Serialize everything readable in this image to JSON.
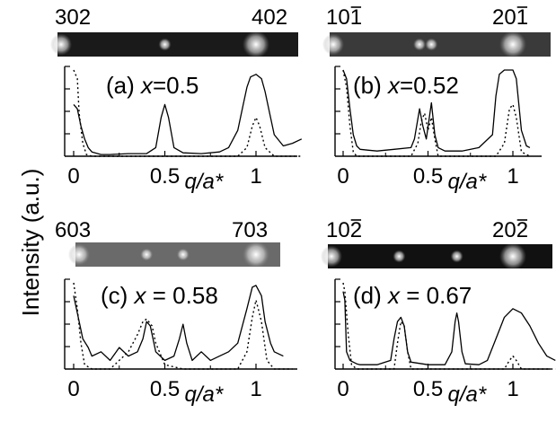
{
  "ylabel": "Intensity (a.u.)",
  "panels": [
    {
      "label": "(a) x=0.5",
      "tag": "(a) ",
      "var": "x",
      "eq": "=0.5",
      "strip_left": "302",
      "strip_right": "402",
      "xlabel": "q/a*",
      "xticks": [
        "0",
        "0.5",
        "1"
      ],
      "strip_spots": [
        0.5,
        1.0
      ],
      "strip_bg": "#1a1a1a"
    },
    {
      "label": "(b) x=0.52",
      "tag": "(b) ",
      "var": "x",
      "eq": "=0.52",
      "strip_left": "101",
      "strip_right": "201",
      "strip_left_overbar": "1",
      "strip_right_overbar": "1",
      "xlabel": "q/a*",
      "xticks": [
        "0",
        "0.5",
        "1"
      ],
      "strip_spots": [
        0.45,
        0.52,
        1.0
      ],
      "strip_bg": "#3a3a3a"
    },
    {
      "label": "(c) x = 0.58",
      "tag": "(c) ",
      "var": "x",
      "eq": " = 0.58",
      "strip_left": "603",
      "strip_right": "703",
      "xlabel": "q/a*",
      "xticks": [
        "0",
        "0.5",
        "1"
      ],
      "strip_spots": [
        0.4,
        0.6,
        1.0
      ],
      "strip_bg": "#6a6a6a"
    },
    {
      "label": "(d) x = 0.67",
      "tag": "(d) ",
      "var": "x",
      "eq": " = 0.67",
      "strip_left": "102",
      "strip_right": "202",
      "strip_left_overbar": "2",
      "strip_right_overbar": "2",
      "xlabel": "q/a*",
      "xticks": [
        "0",
        "0.5",
        "1"
      ],
      "strip_spots": [
        0.33,
        0.67,
        1.0
      ],
      "strip_bg": "#111111"
    }
  ],
  "chart_data": [
    {
      "type": "line",
      "title": "(a) x=0.5",
      "xlabel": "q/a*",
      "ylabel": "Intensity (a.u.)",
      "xlim": [
        0,
        1.25
      ],
      "series": [
        {
          "style": "solid",
          "x": [
            0.0,
            0.02,
            0.04,
            0.06,
            0.08,
            0.1,
            0.15,
            0.2,
            0.3,
            0.4,
            0.45,
            0.48,
            0.5,
            0.52,
            0.55,
            0.6,
            0.7,
            0.8,
            0.85,
            0.9,
            0.93,
            0.95,
            0.97,
            1.0,
            1.03,
            1.05,
            1.08,
            1.1,
            1.15,
            1.2,
            1.25
          ],
          "y": [
            0.6,
            0.55,
            0.35,
            0.2,
            0.1,
            0.05,
            0.02,
            0.02,
            0.03,
            0.03,
            0.1,
            0.45,
            0.6,
            0.45,
            0.1,
            0.04,
            0.03,
            0.05,
            0.1,
            0.3,
            0.6,
            0.8,
            0.92,
            0.95,
            0.9,
            0.75,
            0.45,
            0.25,
            0.12,
            0.15,
            0.2
          ]
        },
        {
          "style": "dotted",
          "x": [
            0.0,
            0.02,
            0.03,
            0.05,
            0.07,
            0.1,
            0.5,
            0.9,
            0.95,
            0.98,
            1.0,
            1.02,
            1.05,
            1.1,
            1.25
          ],
          "y": [
            1.0,
            0.9,
            0.5,
            0.15,
            0.02,
            0.0,
            0.0,
            0.0,
            0.1,
            0.35,
            0.45,
            0.35,
            0.1,
            0.0,
            0.0
          ]
        }
      ]
    },
    {
      "type": "line",
      "title": "(b) x=0.52",
      "xlabel": "q/a*",
      "ylabel": "Intensity (a.u.)",
      "xlim": [
        0,
        1.1
      ],
      "series": [
        {
          "style": "solid",
          "x": [
            0.0,
            0.02,
            0.04,
            0.06,
            0.08,
            0.1,
            0.15,
            0.2,
            0.3,
            0.4,
            0.42,
            0.45,
            0.47,
            0.49,
            0.52,
            0.54,
            0.56,
            0.6,
            0.7,
            0.8,
            0.88,
            0.9,
            0.92,
            0.95,
            0.98,
            1.0,
            1.02,
            1.05,
            1.08,
            1.1
          ],
          "y": [
            1.0,
            0.9,
            0.55,
            0.25,
            0.12,
            0.08,
            0.07,
            0.06,
            0.08,
            0.1,
            0.2,
            0.55,
            0.35,
            0.2,
            0.62,
            0.25,
            0.1,
            0.06,
            0.06,
            0.1,
            0.25,
            0.7,
            0.95,
            1.0,
            1.0,
            1.0,
            0.9,
            0.3,
            0.12,
            0.1
          ]
        },
        {
          "style": "dotted",
          "x": [
            0.0,
            0.02,
            0.04,
            0.06,
            0.08,
            0.1,
            0.4,
            0.44,
            0.46,
            0.48,
            0.5,
            0.52,
            0.54,
            0.56,
            0.9,
            0.95,
            0.98,
            1.0,
            1.02,
            1.05,
            1.1
          ],
          "y": [
            1.0,
            0.8,
            0.35,
            0.05,
            0.0,
            0.0,
            0.0,
            0.15,
            0.4,
            0.5,
            0.3,
            0.45,
            0.2,
            0.0,
            0.0,
            0.15,
            0.55,
            0.6,
            0.45,
            0.05,
            0.0
          ]
        }
      ]
    },
    {
      "type": "line",
      "title": "(c) x = 0.58",
      "xlabel": "q/a*",
      "ylabel": "Intensity (a.u.)",
      "xlim": [
        0,
        1.2
      ],
      "series": [
        {
          "style": "solid",
          "x": [
            0.0,
            0.02,
            0.05,
            0.08,
            0.1,
            0.15,
            0.2,
            0.25,
            0.3,
            0.35,
            0.38,
            0.4,
            0.42,
            0.45,
            0.5,
            0.55,
            0.58,
            0.6,
            0.62,
            0.65,
            0.7,
            0.75,
            0.8,
            0.85,
            0.9,
            0.95,
            0.98,
            1.0,
            1.03,
            1.05,
            1.08,
            1.1,
            1.15
          ],
          "y": [
            0.85,
            0.65,
            0.35,
            0.25,
            0.15,
            0.2,
            0.1,
            0.25,
            0.15,
            0.2,
            0.35,
            0.55,
            0.5,
            0.2,
            0.1,
            0.15,
            0.35,
            0.52,
            0.3,
            0.1,
            0.2,
            0.1,
            0.15,
            0.2,
            0.3,
            0.7,
            0.95,
            0.97,
            0.85,
            0.55,
            0.3,
            0.2,
            0.15
          ]
        },
        {
          "style": "dotted",
          "x": [
            0.0,
            0.02,
            0.04,
            0.06,
            0.1,
            0.2,
            0.3,
            0.35,
            0.38,
            0.4,
            0.43,
            0.45,
            0.5,
            0.6,
            0.9,
            0.95,
            0.98,
            1.0,
            1.03,
            1.06,
            1.1,
            1.2
          ],
          "y": [
            1.0,
            0.7,
            0.3,
            0.05,
            0.0,
            0.0,
            0.2,
            0.4,
            0.55,
            0.58,
            0.5,
            0.3,
            0.05,
            0.0,
            0.0,
            0.2,
            0.6,
            0.8,
            0.55,
            0.1,
            0.0,
            0.0
          ]
        }
      ]
    },
    {
      "type": "line",
      "title": "(d) x = 0.67",
      "xlabel": "q/a*",
      "ylabel": "Intensity (a.u.)",
      "xlim": [
        0,
        1.25
      ],
      "series": [
        {
          "style": "solid",
          "x": [
            0.0,
            0.01,
            0.02,
            0.04,
            0.06,
            0.08,
            0.1,
            0.2,
            0.28,
            0.3,
            0.32,
            0.34,
            0.36,
            0.38,
            0.4,
            0.5,
            0.6,
            0.64,
            0.66,
            0.67,
            0.68,
            0.7,
            0.72,
            0.8,
            0.85,
            0.9,
            0.95,
            1.0,
            1.05,
            1.1,
            1.15,
            1.2,
            1.25
          ],
          "y": [
            0.9,
            0.8,
            0.2,
            0.1,
            0.08,
            0.06,
            0.05,
            0.05,
            0.1,
            0.35,
            0.55,
            0.6,
            0.5,
            0.2,
            0.08,
            0.05,
            0.05,
            0.2,
            0.55,
            0.65,
            0.55,
            0.2,
            0.06,
            0.05,
            0.1,
            0.35,
            0.6,
            0.7,
            0.65,
            0.5,
            0.3,
            0.15,
            0.1
          ]
        },
        {
          "style": "dotted",
          "x": [
            0.0,
            0.01,
            0.03,
            0.05,
            0.08,
            0.3,
            0.32,
            0.34,
            0.36,
            0.38,
            0.4,
            0.95,
            0.98,
            1.0,
            1.02,
            1.05,
            1.25
          ],
          "y": [
            1.0,
            0.9,
            0.4,
            0.05,
            0.0,
            0.0,
            0.3,
            0.55,
            0.5,
            0.2,
            0.0,
            0.0,
            0.1,
            0.15,
            0.1,
            0.0,
            0.0
          ]
        }
      ]
    }
  ]
}
